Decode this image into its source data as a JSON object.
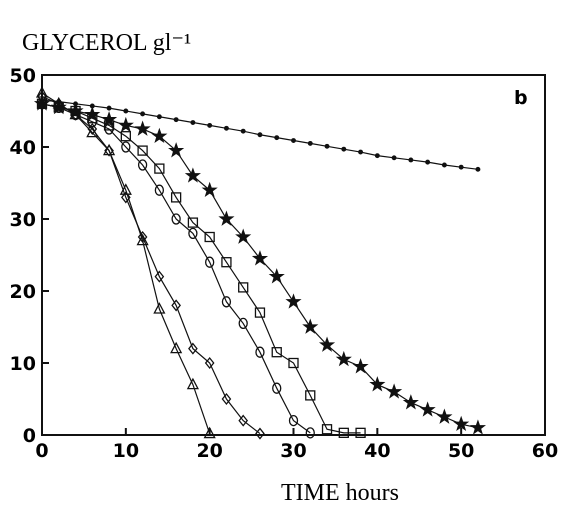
{
  "chart_data": {
    "type": "line",
    "y_label": "GLYCEROL gl⁻¹",
    "x_label": "TIME hours",
    "annotation": "b",
    "x": [
      0,
      2,
      4,
      6,
      8,
      10,
      12,
      14,
      16,
      18,
      20,
      22,
      24,
      26,
      28,
      30,
      32,
      34,
      36,
      38,
      40,
      42,
      44,
      46,
      48,
      50,
      52
    ],
    "series": [
      {
        "marker": "dot",
        "color": "#111111",
        "values": [
          46.5,
          46.3,
          46,
          45.7,
          45.4,
          45,
          44.6,
          44.2,
          43.8,
          43.4,
          43,
          42.6,
          42.2,
          41.7,
          41.3,
          40.9,
          40.5,
          40.1,
          39.7,
          39.3,
          38.8,
          38.5,
          38.2,
          37.9,
          37.5,
          37.2,
          36.9
        ]
      },
      {
        "marker": "star",
        "color": "#111111",
        "values": [
          46,
          45.5,
          45,
          44.5,
          43.8,
          43,
          42.5,
          41.5,
          39.5,
          36,
          34,
          30,
          27.5,
          24.5,
          22,
          18.5,
          15,
          12.5,
          10.5,
          9.5,
          7,
          6,
          4.5,
          3.5,
          2.5,
          1.5,
          1
        ]
      },
      {
        "marker": "square",
        "color": "#111111",
        "values": [
          46,
          45.5,
          45,
          44,
          43,
          41.5,
          39.5,
          37,
          33,
          29.5,
          27.5,
          24,
          20.5,
          17,
          11.5,
          10,
          5.5,
          0.8,
          0.3,
          0.3,
          null,
          null,
          null,
          null,
          null,
          null,
          null
        ]
      },
      {
        "marker": "circle",
        "color": "#111111",
        "values": [
          46,
          45.5,
          44.5,
          43.5,
          42.5,
          40,
          37.5,
          34,
          30,
          28,
          24,
          18.5,
          15.5,
          11.5,
          6.5,
          2,
          0.3,
          null,
          null,
          null,
          null,
          null,
          null,
          null,
          null,
          null,
          null
        ]
      },
      {
        "marker": "diamond",
        "color": "#111111",
        "values": [
          47,
          46,
          44.5,
          42.5,
          39.5,
          33,
          27.5,
          22,
          18,
          12,
          10,
          5,
          2,
          0.2,
          null,
          null,
          null,
          null,
          null,
          null,
          null,
          null,
          null,
          null,
          null,
          null,
          null
        ]
      },
      {
        "marker": "triangle",
        "color": "#111111",
        "values": [
          47.5,
          46,
          44.5,
          42,
          39.5,
          34,
          27,
          17.5,
          12,
          7,
          0.2,
          null,
          null,
          null,
          null,
          null,
          null,
          null,
          null,
          null,
          null,
          null,
          null,
          null,
          null,
          null,
          null
        ]
      }
    ],
    "xlim": [
      0,
      60
    ],
    "ylim": [
      0,
      50
    ],
    "xticks": [
      0,
      10,
      20,
      30,
      40,
      50,
      60
    ],
    "yticks": [
      0,
      10,
      20,
      30,
      40,
      50
    ]
  }
}
